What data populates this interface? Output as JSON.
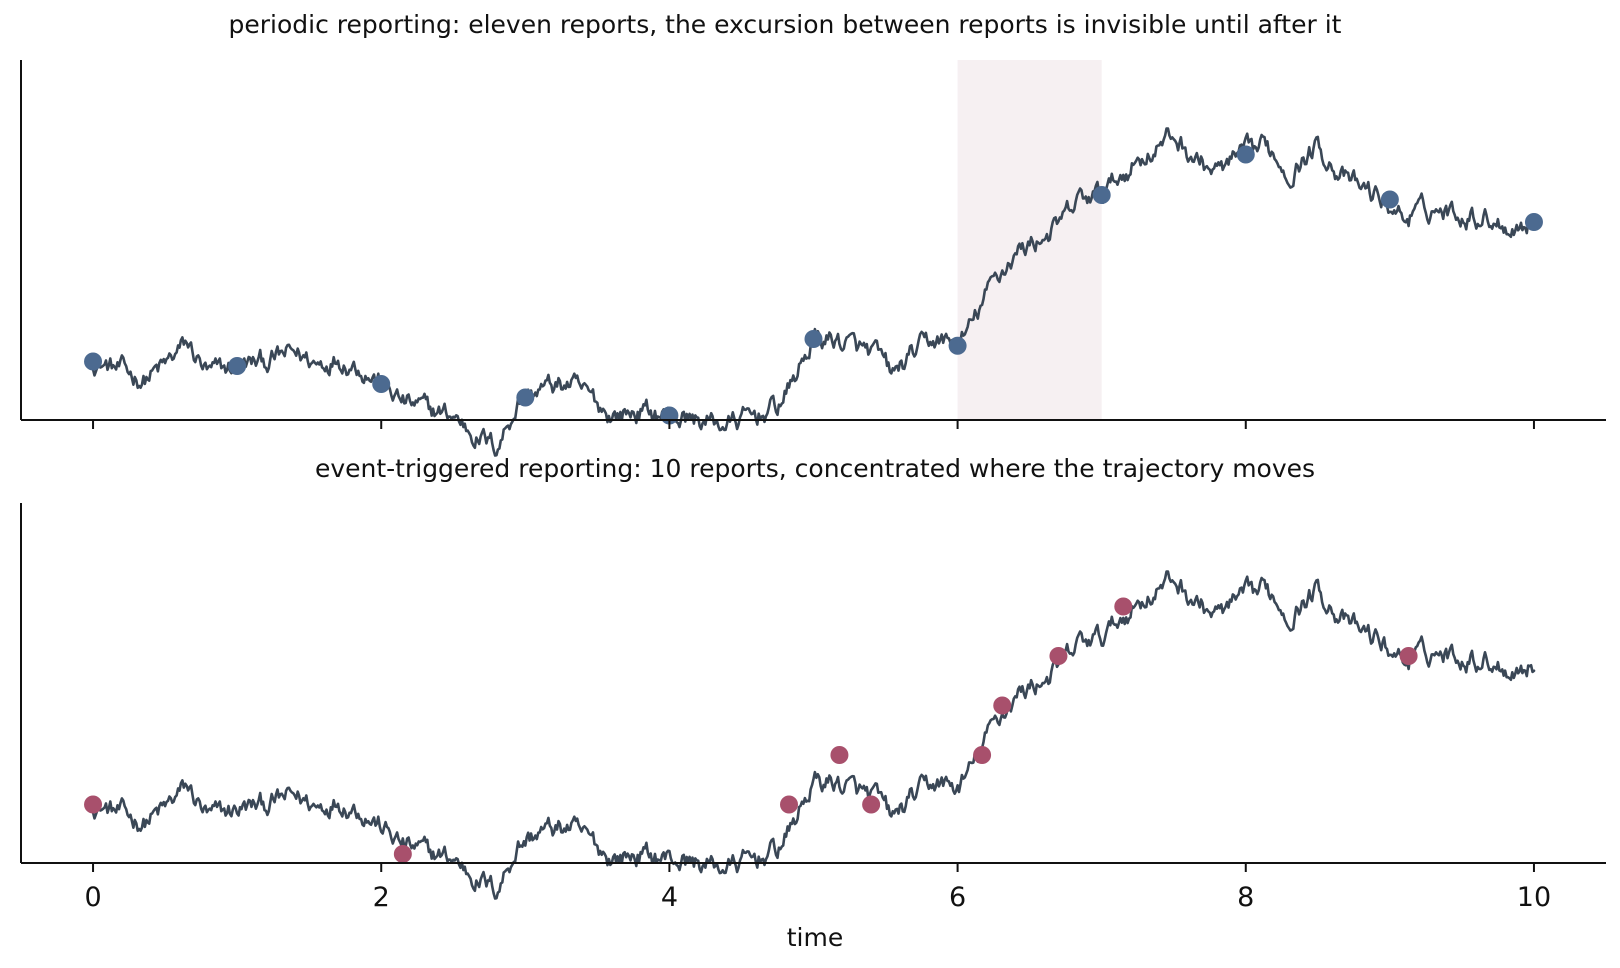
{
  "chart_data": [
    {
      "type": "line",
      "title": "periodic reporting: eleven reports, the excursion between reports is invisible until after it",
      "xlabel": "",
      "ylabel": "",
      "xlim": [
        -0.5,
        10.5
      ],
      "ylim": [
        -1.3,
        6.7
      ],
      "xticks": [
        0,
        2,
        4,
        6,
        8,
        10
      ],
      "show_tick_labels": false,
      "grid": false,
      "line_color": "#3a4756",
      "marker_color": "#4c6a90",
      "highlight_band": {
        "x": [
          6,
          7
        ],
        "color": "#f6f0f2"
      },
      "trajectory_keypoints": [
        [
          0,
          0
        ],
        [
          0.2,
          -0.2
        ],
        [
          0.35,
          -0.4
        ],
        [
          0.5,
          -0.1
        ],
        [
          0.65,
          0.4
        ],
        [
          0.8,
          -0.3
        ],
        [
          1.0,
          -0.1
        ],
        [
          1.2,
          0.0
        ],
        [
          1.4,
          0.2
        ],
        [
          1.55,
          -0.05
        ],
        [
          1.7,
          0.1
        ],
        [
          1.85,
          -0.1
        ],
        [
          2.0,
          -0.5
        ],
        [
          2.15,
          -0.9
        ],
        [
          2.35,
          -1.1
        ],
        [
          2.5,
          -1.2
        ],
        [
          2.65,
          -1.6
        ],
        [
          2.8,
          -1.9
        ],
        [
          2.95,
          -0.9
        ],
        [
          3.1,
          -0.6
        ],
        [
          3.3,
          -0.5
        ],
        [
          3.45,
          -0.8
        ],
        [
          3.6,
          -1.2
        ],
        [
          3.8,
          -1.1
        ],
        [
          4.0,
          -1.2
        ],
        [
          4.2,
          -1.3
        ],
        [
          4.4,
          -1.4
        ],
        [
          4.6,
          -1.2
        ],
        [
          4.75,
          -1.0
        ],
        [
          4.85,
          -0.5
        ],
        [
          5.0,
          0.5
        ],
        [
          5.15,
          0.5
        ],
        [
          5.3,
          0.3
        ],
        [
          5.45,
          0.1
        ],
        [
          5.55,
          -0.3
        ],
        [
          5.7,
          0.2
        ],
        [
          5.85,
          0.5
        ],
        [
          6.0,
          0.35
        ],
        [
          6.1,
          0.8
        ],
        [
          6.25,
          1.8
        ],
        [
          6.4,
          2.4
        ],
        [
          6.55,
          2.7
        ],
        [
          6.7,
          3.0
        ],
        [
          6.85,
          3.6
        ],
        [
          7.0,
          3.7
        ],
        [
          7.15,
          4.2
        ],
        [
          7.3,
          4.6
        ],
        [
          7.5,
          5.0
        ],
        [
          7.65,
          4.5
        ],
        [
          7.8,
          4.2
        ],
        [
          8.0,
          4.6
        ],
        [
          8.15,
          4.8
        ],
        [
          8.3,
          4.2
        ],
        [
          8.5,
          4.8
        ],
        [
          8.7,
          4.0
        ],
        [
          8.9,
          3.7
        ],
        [
          9.1,
          3.2
        ],
        [
          9.3,
          3.4
        ],
        [
          9.5,
          3.3
        ],
        [
          9.7,
          3.2
        ],
        [
          9.85,
          3.0
        ],
        [
          10.0,
          3.1
        ]
      ],
      "reports": {
        "x": [
          0,
          1,
          2,
          3,
          4,
          5,
          6,
          7,
          8,
          9,
          10
        ],
        "y": [
          0.0,
          -0.1,
          -0.5,
          -0.8,
          -1.2,
          0.5,
          0.35,
          3.7,
          4.6,
          3.6,
          3.1
        ]
      }
    },
    {
      "type": "line",
      "title": "event-triggered reporting: 10 reports, concentrated where the trajectory moves",
      "xlabel": "time",
      "ylabel": "",
      "xlim": [
        -0.5,
        10.5
      ],
      "ylim": [
        -1.3,
        6.7
      ],
      "xticks": [
        0,
        2,
        4,
        6,
        8,
        10
      ],
      "show_tick_labels": true,
      "grid": false,
      "line_color": "#3a4756",
      "marker_color": "#a8506c",
      "reports": {
        "x": [
          0,
          2.15,
          4.83,
          5.18,
          5.4,
          6.17,
          6.31,
          6.7,
          7.15,
          9.13
        ],
        "y": [
          0.0,
          -1.1,
          0.0,
          1.1,
          0.0,
          1.1,
          2.2,
          3.3,
          4.4,
          3.3
        ]
      }
    }
  ]
}
